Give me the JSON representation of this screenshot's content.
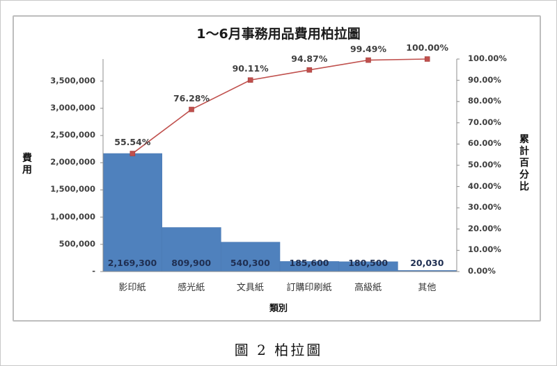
{
  "chart_data": {
    "type": "bar",
    "combo": "pareto (bar + line on secondary axis)",
    "title": "1～6月事務用品費用柏拉圖",
    "xlabel": "類別",
    "ylabel": "費用",
    "y2label": "累計百分比",
    "categories": [
      "影印紙",
      "感光紙",
      "文具紙",
      "訂購印刷紙",
      "高級紙",
      "其他"
    ],
    "series": [
      {
        "name": "費用",
        "type": "bar",
        "axis": "left",
        "color": "#4f81bd",
        "values": [
          2169300,
          809900,
          540300,
          185600,
          180500,
          20030
        ],
        "labels": [
          "2,169,300",
          "809,900",
          "540,300",
          "185,600",
          "180,500",
          "20,030"
        ]
      },
      {
        "name": "累計百分比",
        "type": "line",
        "axis": "right",
        "color": "#c0504d",
        "marker": "square",
        "values": [
          55.54,
          76.28,
          90.11,
          94.87,
          99.49,
          100.0
        ],
        "labels": [
          "55.54%",
          "76.28%",
          "90.11%",
          "94.87%",
          "99.49%",
          "100.00%"
        ]
      }
    ],
    "ylim": [
      0,
      3905630
    ],
    "y_ticks": [
      "-",
      "500,000",
      "1,000,000",
      "1,500,000",
      "2,000,000",
      "2,500,000",
      "3,000,000",
      "3,500,000"
    ],
    "y2lim": [
      0,
      100
    ],
    "y2_ticks": [
      "0.00%",
      "10.00%",
      "20.00%",
      "30.00%",
      "40.00%",
      "50.00%",
      "60.00%",
      "70.00%",
      "80.00%",
      "90.00%",
      "100.00%"
    ],
    "grid": false,
    "legend": "none"
  },
  "caption": "圖 2 柏拉圖"
}
